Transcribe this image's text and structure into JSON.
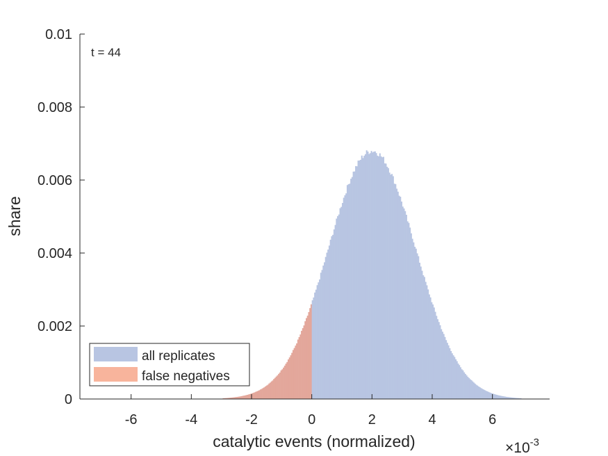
{
  "chart_data": {
    "type": "histogram",
    "annotation": "t = 44",
    "xlabel": "catalytic events (normalized)",
    "ylabel": "share",
    "x_exponent_label": {
      "base": "×10",
      "exp": "-3"
    },
    "xlim": [
      -7.7,
      7.9
    ],
    "ylim": [
      0,
      0.01
    ],
    "xticks": [
      -6,
      -4,
      -2,
      0,
      2,
      4,
      6
    ],
    "yticks": [
      0,
      0.002,
      0.004,
      0.006,
      0.008,
      0.01
    ],
    "ytick_labels": [
      "0",
      "0.002",
      "0.004",
      "0.006",
      "0.008",
      "0.01"
    ],
    "grid": false,
    "legend_location": "bottom-left",
    "series": [
      {
        "name": "all replicates",
        "color": "#b8c5e2",
        "distribution": "normal",
        "mean": 2.0,
        "std": 1.45,
        "peak": 0.0068,
        "x_range": [
          -7.0,
          7.2
        ],
        "bin_width": 0.04
      },
      {
        "name": "false negatives",
        "color": "#f8b49c",
        "overlap_color": "#e3a79b",
        "note_range": "x < 0",
        "x_range": [
          -7.0,
          0
        ]
      }
    ]
  }
}
